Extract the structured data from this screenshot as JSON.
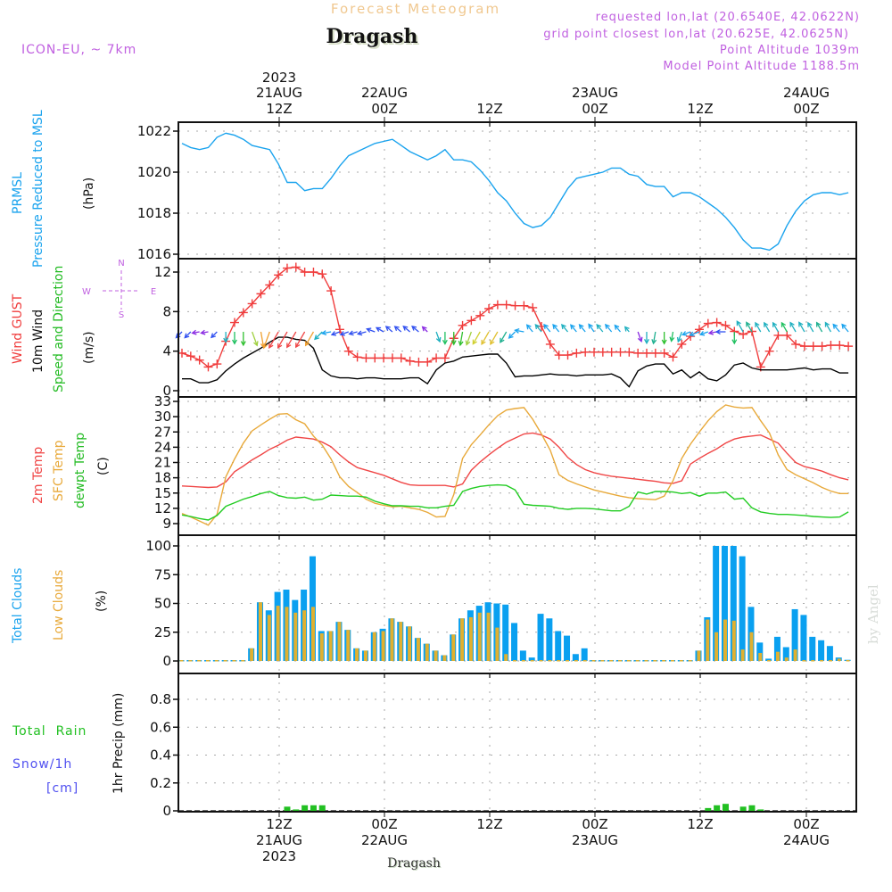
{
  "header": {
    "subtitle": "Forecast Meteogram",
    "location": "Dragash",
    "model": "ICON-EU, ~ 7km",
    "requested": "requested lon,lat (20.6540E, 42.0622N)",
    "grid_point": "grid point closest lon,lat (20.625E, 42.0625N)",
    "point_altitude": "Point Altitude 1039m",
    "model_altitude": "Model Point Altitude 1188.5m",
    "footer_location": "Dragash",
    "credit": "by Angel"
  },
  "colors": {
    "pressure": "#1aa3ee",
    "gust": "#f03c3c",
    "wind": "#000000",
    "temp2m": "#f04646",
    "sfc": "#e8a93a",
    "dewpt": "#22cc22",
    "total_clouds": "#0aa0f0",
    "low_clouds": "#e0b030",
    "rain": "#22c022",
    "snow": "#5050f0",
    "label_purple": "#c060e0"
  },
  "top_axis": [
    {
      "line1": "2023",
      "line2": "21AUG",
      "line3": "12Z"
    },
    {
      "line1": "",
      "line2": "22AUG",
      "line3": "00Z"
    },
    {
      "line1": "",
      "line2": "",
      "line3": "12Z"
    },
    {
      "line1": "",
      "line2": "23AUG",
      "line3": "00Z"
    },
    {
      "line1": "",
      "line2": "",
      "line3": "12Z"
    },
    {
      "line1": "",
      "line2": "24AUG",
      "line3": "00Z"
    }
  ],
  "bottom_axis": [
    {
      "line1": "12Z",
      "line2": "21AUG",
      "line3": "2023"
    },
    {
      "line1": "00Z",
      "line2": "22AUG",
      "line3": ""
    },
    {
      "line1": "12Z",
      "line2": "",
      "line3": ""
    },
    {
      "line1": "00Z",
      "line2": "23AUG",
      "line3": ""
    },
    {
      "line1": "12Z",
      "line2": "",
      "line3": ""
    },
    {
      "line1": "00Z",
      "line2": "24AUG",
      "line3": ""
    }
  ],
  "labels": {
    "pressure": [
      "PRMSL",
      "Pressure Reduced to MSL",
      "(hPa)"
    ],
    "wind": [
      "Wind GUST",
      "10m Wind",
      "Speed and Direction",
      "(m/s)"
    ],
    "compass": {
      "n": "N",
      "s": "S",
      "w": "W",
      "e": "E",
      "arrows": "<- - ->"
    },
    "temp": [
      "2m Temp",
      "SFC Temp",
      "dewpt Temp",
      "(C)"
    ],
    "clouds": [
      "Total Clouds",
      "Low Clouds",
      "(%)"
    ],
    "precip": [
      "Total  Rain",
      "Snow/1h",
      "[cm]",
      "1hr Precip (mm)"
    ]
  },
  "chart_data": [
    {
      "type": "line",
      "title": "PRMSL Pressure Reduced to MSL",
      "ylabel": "(hPa)",
      "ylim": [
        1016,
        1022
      ],
      "yticks": [
        1016,
        1018,
        1020,
        1022
      ],
      "x_unit": "hours from 21AUG 01Z (3-hourly)",
      "x": [
        0,
        1,
        2,
        3,
        4,
        5,
        6,
        7,
        8,
        9,
        10,
        11,
        12,
        13,
        14,
        15,
        16,
        17,
        18,
        19,
        20,
        21,
        22,
        23,
        24,
        25,
        26,
        27,
        28,
        29,
        30,
        31,
        32,
        33,
        34,
        35,
        36,
        37,
        38,
        39,
        40,
        41,
        42,
        43,
        44,
        45,
        46,
        47,
        48,
        49,
        50,
        51,
        52,
        53,
        54,
        55,
        56,
        57,
        58,
        59,
        60,
        61,
        62,
        63,
        64,
        65,
        66,
        67,
        68,
        69,
        70,
        71,
        72,
        73,
        74,
        75,
        76
      ],
      "series": [
        {
          "name": "PRMSL",
          "values": [
            1021.4,
            1021.2,
            1021.1,
            1021.2,
            1021.7,
            1021.9,
            1021.8,
            1021.6,
            1021.3,
            1021.2,
            1021.1,
            1020.4,
            1019.5,
            1019.5,
            1019.1,
            1019.2,
            1019.2,
            1019.7,
            1020.3,
            1020.8,
            1021.0,
            1021.2,
            1021.4,
            1021.5,
            1021.6,
            1021.3,
            1021.0,
            1020.8,
            1020.6,
            1020.8,
            1021.1,
            1020.6,
            1020.6,
            1020.5,
            1020.1,
            1019.6,
            1019.0,
            1018.6,
            1018.0,
            1017.5,
            1017.3,
            1017.4,
            1017.8,
            1018.5,
            1019.2,
            1019.7,
            1019.8,
            1019.9,
            1020.0,
            1020.2,
            1020.2,
            1019.9,
            1019.8,
            1019.4,
            1019.3,
            1019.3,
            1018.8,
            1019.0,
            1019.0,
            1018.8,
            1018.5,
            1018.2,
            1017.8,
            1017.3,
            1016.7,
            1016.3,
            1016.3,
            1016.2,
            1016.5,
            1017.4,
            1018.1,
            1018.6,
            1018.9,
            1019.0,
            1019.0,
            1018.9,
            1019.0
          ]
        }
      ]
    },
    {
      "type": "line",
      "title": "Wind GUST / 10m Wind Speed and Direction",
      "ylabel": "(m/s)",
      "ylim": [
        0,
        12
      ],
      "yticks": [
        0,
        4,
        8,
        12
      ],
      "series": [
        {
          "name": "Wind GUST",
          "values": [
            3.8,
            3.5,
            3.1,
            2.4,
            2.7,
            5.0,
            6.9,
            7.9,
            8.8,
            9.8,
            10.7,
            11.7,
            12.4,
            12.5,
            12.0,
            12.0,
            11.8,
            10.1,
            6.2,
            4.0,
            3.4,
            3.3,
            3.3,
            3.3,
            3.3,
            3.3,
            3.0,
            2.9,
            2.9,
            3.3,
            3.3,
            5.3,
            6.6,
            7.1,
            7.6,
            8.3,
            8.7,
            8.7,
            8.6,
            8.6,
            8.4,
            6.5,
            4.7,
            3.6,
            3.6,
            3.8,
            3.9,
            3.9,
            3.9,
            3.9,
            3.9,
            3.9,
            3.8,
            3.8,
            3.8,
            3.8,
            3.4,
            4.7,
            5.5,
            6.2,
            6.8,
            6.9,
            6.6,
            6.0,
            5.7,
            6.0,
            2.4,
            4.0,
            5.6,
            5.6,
            4.7,
            4.5,
            4.5,
            4.5,
            4.6,
            4.6,
            4.5
          ]
        },
        {
          "name": "10m Wind",
          "values": [
            1.2,
            1.2,
            0.8,
            0.8,
            1.1,
            2.0,
            2.7,
            3.3,
            3.8,
            4.3,
            4.9,
            5.4,
            5.4,
            5.2,
            5.1,
            4.3,
            2.1,
            1.5,
            1.3,
            1.3,
            1.2,
            1.3,
            1.3,
            1.2,
            1.2,
            1.2,
            1.3,
            1.3,
            0.7,
            2.1,
            2.8,
            3.0,
            3.4,
            3.5,
            3.6,
            3.7,
            3.7,
            2.8,
            1.4,
            1.5,
            1.5,
            1.6,
            1.7,
            1.6,
            1.6,
            1.5,
            1.6,
            1.6,
            1.6,
            1.7,
            1.3,
            0.4,
            2.0,
            2.5,
            2.7,
            2.7,
            1.7,
            2.1,
            1.3,
            1.9,
            1.2,
            1.0,
            1.6,
            2.6,
            2.8,
            2.3,
            2.1,
            2.1,
            2.1,
            2.1,
            2.2,
            2.3,
            2.1,
            2.2,
            2.2,
            1.8,
            1.8
          ]
        }
      ],
      "wind_dir_from_deg": [
        45,
        45,
        80,
        80,
        45,
        0,
        0,
        0,
        340,
        350,
        20,
        30,
        30,
        30,
        30,
        30,
        45,
        80,
        70,
        70,
        75,
        75,
        110,
        120,
        130,
        130,
        130,
        130,
        135,
        340,
        0,
        0,
        10,
        20,
        30,
        30,
        30,
        30,
        45,
        100,
        140,
        140,
        140,
        140,
        140,
        140,
        140,
        145,
        140,
        140,
        140,
        140,
        340,
        0,
        10,
        0,
        10,
        20,
        70,
        70,
        70,
        80,
        90,
        0,
        150,
        150,
        150,
        150,
        150,
        150,
        150,
        150,
        150,
        150,
        150,
        140,
        140
      ],
      "wind_color": [
        "#3050f0",
        "#3050f0",
        "#8a2be2",
        "#8a2be2",
        "#3050f0",
        "#20b0c0",
        "#20c060",
        "#30c030",
        "#a0d040",
        "#f0a030",
        "#f0a030",
        "#f04646",
        "#f04646",
        "#f04646",
        "#f04646",
        "#f0a030",
        "#20b0c0",
        "#1aa3ee",
        "#3050f0",
        "#3050f0",
        "#3050f0",
        "#3050f0",
        "#3050f0",
        "#3050f0",
        "#3050f0",
        "#3050f0",
        "#3050f0",
        "#3050f0",
        "#8a2be2",
        "#20b0c0",
        "#20c060",
        "#30c030",
        "#30c030",
        "#a0d040",
        "#d0d030",
        "#e0c030",
        "#e0c030",
        "#20b090",
        "#1aa3ee",
        "#1aa3ee",
        "#1aa3ee",
        "#20b0c0",
        "#1aa3ee",
        "#1aa3ee",
        "#20b0c0",
        "#1aa3ee",
        "#1aa3ee",
        "#1aa3ee",
        "#20b0c0",
        "#1aa3ee",
        "#1aa3ee",
        "#20b0c0",
        "#8a2be2",
        "#20b0c0",
        "#20b090",
        "#30c030",
        "#20c060",
        "#20b0c0",
        "#1aa3ee",
        "#1aa3ee",
        "#1aa3ee",
        "#8a2be2",
        "#3050f0",
        "#20c060",
        "#20b0c0",
        "#20b090",
        "#20b0c0",
        "#20b0c0",
        "#20b0c0",
        "#20c060",
        "#20b0c0",
        "#20b0c0",
        "#20b0c0",
        "#20b090",
        "#20b0c0",
        "#1aa3ee",
        "#1aa3ee"
      ]
    },
    {
      "type": "line",
      "title": "2m Temp / SFC Temp / dewpt Temp",
      "ylabel": "(C)",
      "ylim": [
        9,
        33
      ],
      "yticks": [
        9,
        12,
        15,
        18,
        21,
        24,
        27,
        30,
        33
      ],
      "series": [
        {
          "name": "2m Temp",
          "values": [
            16.4,
            16.3,
            16.2,
            16.1,
            16.2,
            17.2,
            19.2,
            20.3,
            21.5,
            22.5,
            23.6,
            24.4,
            25.4,
            26.0,
            25.8,
            25.6,
            25.0,
            24.1,
            22.5,
            21.1,
            20.0,
            19.5,
            19.0,
            18.5,
            17.8,
            17.1,
            16.6,
            16.5,
            16.5,
            16.5,
            16.5,
            16.2,
            16.8,
            19.5,
            21.1,
            22.5,
            23.8,
            25.0,
            25.8,
            26.6,
            26.8,
            26.4,
            25.6,
            24.0,
            22.0,
            20.6,
            19.6,
            19.0,
            18.6,
            18.3,
            18.1,
            17.9,
            17.7,
            17.5,
            17.3,
            17.0,
            16.9,
            17.4,
            20.7,
            21.8,
            22.8,
            23.7,
            24.8,
            25.6,
            26.0,
            26.2,
            26.4,
            25.6,
            24.8,
            22.8,
            21.0,
            20.2,
            19.8,
            19.3,
            18.6,
            18.0,
            17.6
          ]
        },
        {
          "name": "SFC Temp",
          "values": [
            11.0,
            10.3,
            9.5,
            8.7,
            10.8,
            18.2,
            21.7,
            24.8,
            27.2,
            28.4,
            29.5,
            30.5,
            30.6,
            29.4,
            28.6,
            26.2,
            24.4,
            21.7,
            18.2,
            16.3,
            15.1,
            13.8,
            13.0,
            12.6,
            12.3,
            12.4,
            12.1,
            11.8,
            11.2,
            10.3,
            10.4,
            14.7,
            21.8,
            24.5,
            26.4,
            28.4,
            30.2,
            31.3,
            31.6,
            31.8,
            29.5,
            26.6,
            23.4,
            18.6,
            17.5,
            16.8,
            16.2,
            15.6,
            15.2,
            14.8,
            14.4,
            14.1,
            13.9,
            13.8,
            13.7,
            14.4,
            17.4,
            21.8,
            24.6,
            27.0,
            29.2,
            31.0,
            32.3,
            31.9,
            31.7,
            31.8,
            29.2,
            26.8,
            22.5,
            19.6,
            18.6,
            17.8,
            17.0,
            16.1,
            15.4,
            14.9,
            14.9
          ]
        },
        {
          "name": "dewpt Temp",
          "values": [
            10.7,
            10.4,
            10.0,
            9.7,
            10.6,
            12.4,
            13.1,
            13.8,
            14.3,
            14.9,
            15.3,
            14.5,
            14.1,
            14.0,
            14.2,
            13.6,
            13.8,
            14.6,
            14.5,
            14.4,
            14.4,
            14.2,
            13.4,
            12.9,
            12.5,
            12.5,
            12.4,
            12.4,
            12.1,
            12.1,
            12.4,
            12.6,
            15.3,
            15.9,
            16.3,
            16.5,
            16.6,
            16.5,
            15.6,
            12.8,
            12.6,
            12.5,
            12.4,
            12.0,
            11.8,
            12.0,
            12.0,
            11.9,
            11.7,
            11.5,
            11.5,
            12.4,
            15.2,
            14.8,
            15.3,
            15.3,
            15.2,
            14.9,
            15.1,
            14.4,
            15.0,
            15.0,
            15.2,
            13.8,
            14.0,
            12.1,
            11.3,
            11.0,
            10.8,
            10.8,
            10.7,
            10.6,
            10.4,
            10.3,
            10.2,
            10.3,
            11.3
          ]
        }
      ]
    },
    {
      "type": "bar",
      "title": "Total Clouds / Low Clouds",
      "ylabel": "(%)",
      "ylim": [
        0,
        100
      ],
      "yticks": [
        0,
        25,
        50,
        75,
        100
      ],
      "series": [
        {
          "name": "Total Clouds",
          "values": [
            0,
            0,
            0,
            0,
            0,
            0,
            0,
            0,
            11,
            51,
            44,
            60,
            62,
            53,
            62,
            91,
            26,
            26,
            34,
            27,
            11,
            9,
            25,
            28,
            37,
            34,
            30,
            20,
            15,
            9,
            5,
            23,
            37,
            44,
            48,
            51,
            50,
            49,
            33,
            9,
            3,
            41,
            37,
            26,
            22,
            6,
            11,
            0,
            0,
            0,
            0,
            0,
            0,
            0,
            0,
            0,
            0,
            0,
            0,
            9,
            38,
            100,
            100,
            100,
            91,
            47,
            16,
            2,
            21,
            12,
            45,
            40,
            21,
            18,
            13,
            3,
            1
          ]
        },
        {
          "name": "Low Clouds",
          "values": [
            0,
            0,
            0,
            0,
            0,
            0,
            0,
            0,
            11,
            51,
            40,
            48,
            47,
            42,
            44,
            47,
            24,
            26,
            34,
            27,
            11,
            9,
            25,
            26,
            37,
            34,
            30,
            20,
            15,
            9,
            5,
            23,
            37,
            38,
            42,
            42,
            29,
            6,
            0,
            0,
            0,
            0,
            0,
            0,
            0,
            0,
            0,
            0,
            0,
            0,
            0,
            0,
            0,
            0,
            0,
            0,
            0,
            0,
            0,
            9,
            36,
            25,
            36,
            35,
            10,
            25,
            7,
            0,
            8,
            3,
            10,
            0,
            0,
            0,
            0,
            2,
            0
          ]
        }
      ]
    },
    {
      "type": "bar",
      "title": "1hr Precip",
      "ylabel": "1hr Precip (mm)",
      "ylim": [
        0,
        0.96
      ],
      "yticks": [
        0,
        0.2,
        0.4,
        0.6,
        0.8
      ],
      "series": [
        {
          "name": "Total Rain",
          "values": [
            0,
            0,
            0,
            0,
            0,
            0,
            0,
            0,
            0,
            0,
            0,
            0,
            0.03,
            0.01,
            0.04,
            0.04,
            0.04,
            0,
            0,
            0,
            0,
            0,
            0,
            0,
            0,
            0,
            0,
            0,
            0,
            0,
            0,
            0,
            0,
            0,
            0,
            0,
            0,
            0,
            0,
            0,
            0,
            0,
            0,
            0,
            0,
            0,
            0,
            0,
            0,
            0,
            0,
            0,
            0,
            0,
            0,
            0,
            0,
            0,
            0,
            0,
            0.02,
            0.04,
            0.05,
            0,
            0.03,
            0.04,
            0.01,
            0,
            0,
            0,
            0,
            0,
            0,
            0,
            0,
            0,
            0
          ]
        },
        {
          "name": "Snow/1h",
          "values": []
        }
      ]
    }
  ]
}
